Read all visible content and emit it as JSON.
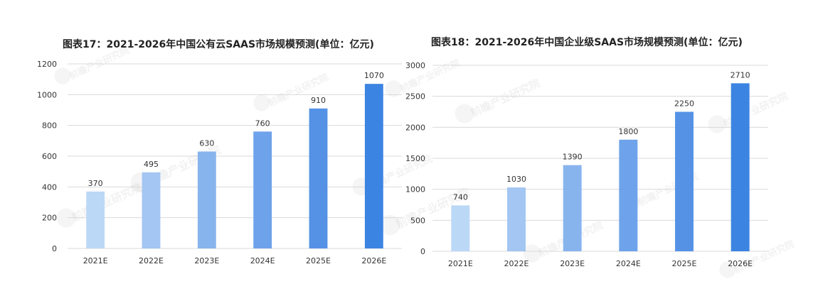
{
  "chart_data": [
    {
      "type": "bar",
      "title": "图表17：2021-2026年中国公有云SAAS市场规模预测(单位：亿元)",
      "categories": [
        "2021E",
        "2022E",
        "2023E",
        "2024E",
        "2025E",
        "2026E"
      ],
      "values": [
        370,
        495,
        630,
        760,
        910,
        1070
      ],
      "ylim": [
        0,
        1200
      ],
      "yticks": [
        0,
        200,
        400,
        600,
        800,
        1000,
        1200
      ],
      "grid": true,
      "colors": [
        "#bcd8f7",
        "#a3c6f2",
        "#88b4ee",
        "#6ea2ea",
        "#5592e6",
        "#3c84e2"
      ]
    },
    {
      "type": "bar",
      "title": "图表18：2021-2026年中国企业级SAAS市场规模预测(单位：亿元)",
      "categories": [
        "2021E",
        "2022E",
        "2023E",
        "2024E",
        "2025E",
        "2026E"
      ],
      "values": [
        740,
        1030,
        1390,
        1800,
        2250,
        2710
      ],
      "ylim": [
        0,
        3000
      ],
      "yticks": [
        0,
        500,
        1000,
        1500,
        2000,
        2500,
        3000
      ],
      "grid": true,
      "colors": [
        "#bcd8f7",
        "#a3c6f2",
        "#88b4ee",
        "#6ea2ea",
        "#5592e6",
        "#3c84e2"
      ]
    }
  ],
  "watermark": {
    "text": "前瞻产业研究院",
    "icon": "qianzhan-logo-icon"
  }
}
